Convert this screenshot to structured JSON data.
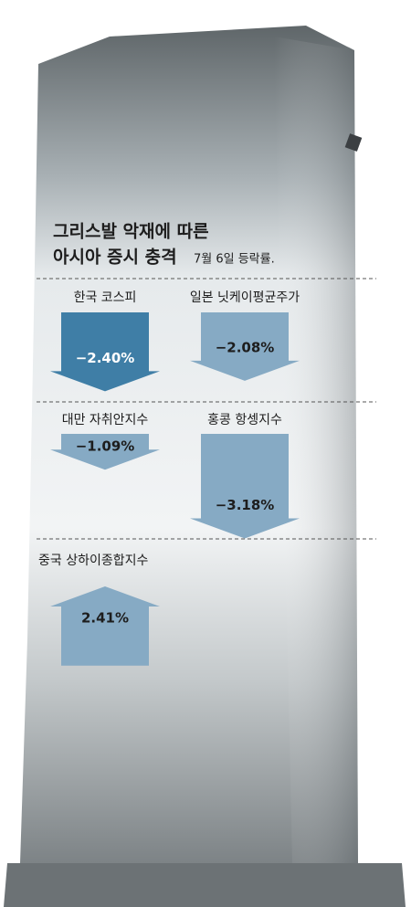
{
  "chart_data": {
    "type": "arrow",
    "title_lines": [
      "그리스발 악재에 따른",
      "아시아 증시 충격"
    ],
    "subtitle": "7월 6일 등락률.",
    "categories": [
      "한국 코스피",
      "일본 닛케이평균주가",
      "대만 자취안지수",
      "홍콩 항셍지수",
      "중국 상하이종합지수"
    ],
    "values": [
      -2.4,
      -2.08,
      -1.09,
      -3.18,
      2.41
    ],
    "value_labels": [
      "−2.40%",
      "−2.08%",
      "−1.09%",
      "−3.18%",
      "2.41%"
    ],
    "colors": [
      "#3f7ea6",
      "#86aac4",
      "#86aac4",
      "#86aac4",
      "#86aac4"
    ]
  }
}
